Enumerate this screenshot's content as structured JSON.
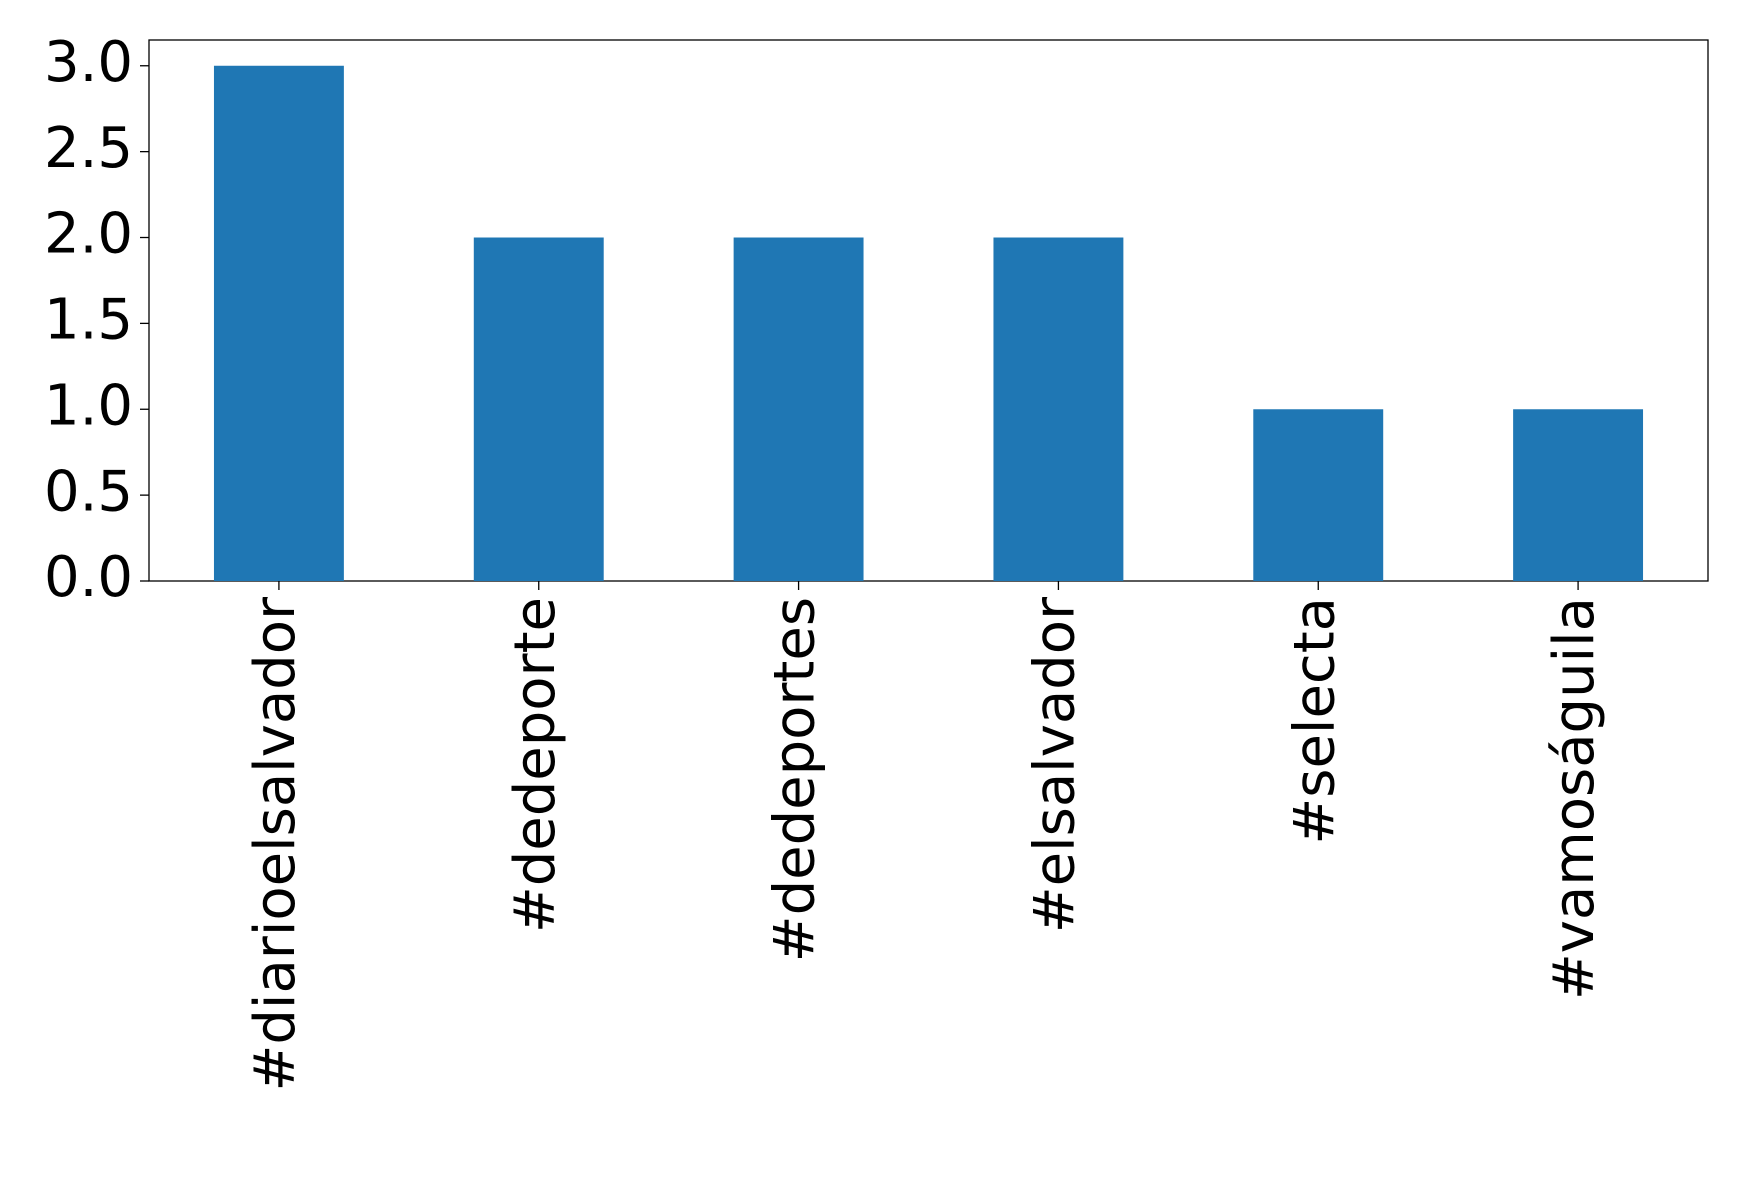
{
  "chart_data": {
    "type": "bar",
    "categories": [
      "#diarioelsalvador",
      "#dedeporte",
      "#dedeportes",
      "#elsalvador",
      "#selecta",
      "#vamoságuila"
    ],
    "values": [
      3,
      2,
      2,
      2,
      1,
      1
    ],
    "color": "#1f77b4",
    "ylim": [
      0,
      3.15
    ],
    "yticks": [
      {
        "value": 0,
        "label": "0.0"
      },
      0.5,
      {
        "value": 1,
        "label": "1.0"
      },
      1.5,
      {
        "value": 2,
        "label": "2.0"
      },
      2.5,
      {
        "value": 3,
        "label": "3.0"
      }
    ],
    "grid": false
  }
}
